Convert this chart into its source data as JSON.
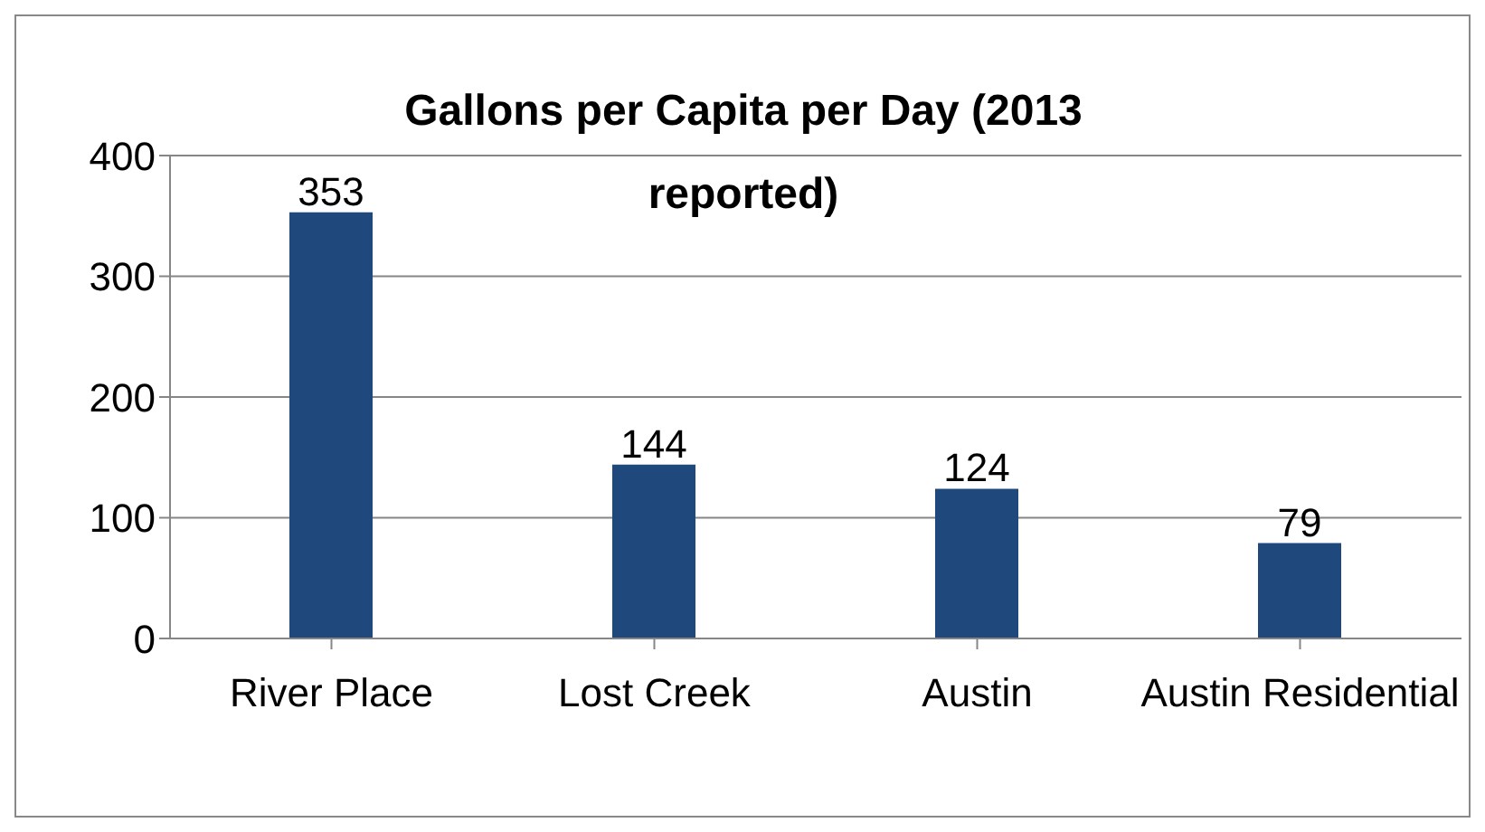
{
  "chart_data": {
    "type": "bar",
    "title": "Gallons per Capita per Day (2013 reported)",
    "categories": [
      "River Place",
      "Lost Creek",
      "Austin",
      "Austin Residential"
    ],
    "values": [
      353,
      144,
      124,
      79
    ],
    "color": "#1f497d",
    "ylim": [
      0,
      400
    ],
    "yticks": [
      0,
      100,
      200,
      300,
      400
    ],
    "grid": "y",
    "data_labels": true
  }
}
